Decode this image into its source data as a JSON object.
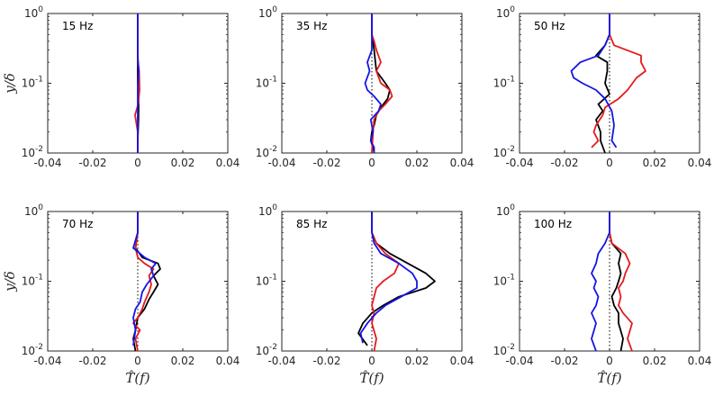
{
  "chart_data": {
    "type": "line",
    "xlabel": "T̂(f)",
    "ylabel": "y/δ",
    "xlim": [
      -0.04,
      0.04
    ],
    "ylim": [
      0.01,
      1
    ],
    "yscale": "log",
    "x_ticks": [
      "-0.04",
      "-0.02",
      "0",
      "0.02",
      "0.04"
    ],
    "y_tick_values": [
      0.01,
      0.1,
      1
    ],
    "y_tick_exponents": [
      "-2",
      "-1",
      "0"
    ],
    "y_tick_base": "10",
    "reference_line": {
      "x": 0,
      "style": "dotted",
      "color": "#000000"
    },
    "series_colors": {
      "black": "#000000",
      "red": "#e41a1c",
      "blue": "#1414e6"
    },
    "panels": [
      {
        "label": "15 Hz",
        "series": [
          {
            "color": "black",
            "x": [
              0,
              0,
              0,
              0,
              0,
              0.0004,
              0.0003,
              0,
              0
            ],
            "y": [
              1,
              0.5,
              0.3,
              0.2,
              0.1,
              0.05,
              0.03,
              0.015,
              0.01
            ]
          },
          {
            "color": "red",
            "x": [
              0,
              0,
              0,
              0.0006,
              0.0008,
              0.0002,
              -0.0012,
              0,
              0
            ],
            "y": [
              1,
              0.5,
              0.22,
              0.15,
              0.08,
              0.05,
              0.035,
              0.02,
              0.01
            ]
          },
          {
            "color": "blue",
            "x": [
              0,
              0,
              0,
              0.0004,
              0,
              0,
              0,
              0
            ],
            "y": [
              1,
              0.5,
              0.25,
              0.15,
              0.08,
              0.04,
              0.02,
              0.01
            ]
          }
        ]
      },
      {
        "label": "35 Hz",
        "series": [
          {
            "color": "black",
            "x": [
              0,
              0,
              0.001,
              0.002,
              0.006,
              0.008,
              0.007,
              0.004,
              0.002,
              0.001,
              0,
              -0.0005,
              0.0005,
              0
            ],
            "y": [
              1,
              0.5,
              0.3,
              0.15,
              0.1,
              0.08,
              0.06,
              0.045,
              0.035,
              0.025,
              0.02,
              0.015,
              0.012,
              0.01
            ]
          },
          {
            "color": "red",
            "x": [
              0,
              0,
              0.001,
              0.002,
              0.004,
              0.002,
              0.004,
              0.008,
              0.009,
              0.006,
              0.003,
              0.001,
              0.0005,
              0
            ],
            "y": [
              1,
              0.5,
              0.4,
              0.3,
              0.2,
              0.15,
              0.1,
              0.08,
              0.065,
              0.05,
              0.04,
              0.03,
              0.02,
              0.01
            ]
          },
          {
            "color": "blue",
            "x": [
              0,
              0,
              0,
              -0.002,
              -0.001,
              -0.003,
              -0.002,
              0.001,
              0.004,
              0.003,
              -0.0005,
              0.0005,
              -0.0005,
              0.001,
              0.001
            ],
            "y": [
              1,
              0.5,
              0.3,
              0.2,
              0.15,
              0.1,
              0.08,
              0.065,
              0.05,
              0.04,
              0.03,
              0.02,
              0.015,
              0.012,
              0.01
            ]
          }
        ]
      },
      {
        "label": "50 Hz",
        "series": [
          {
            "color": "black",
            "x": [
              0,
              0,
              -0.002,
              -0.006,
              -0.001,
              -0.001,
              -0.002,
              0,
              -0.005,
              -0.003,
              -0.006,
              -0.004,
              -0.004,
              -0.002
            ],
            "y": [
              1,
              0.5,
              0.35,
              0.25,
              0.2,
              0.15,
              0.1,
              0.07,
              0.05,
              0.04,
              0.03,
              0.02,
              0.015,
              0.01
            ]
          },
          {
            "color": "red",
            "x": [
              0,
              0,
              0.002,
              0.014,
              0.014,
              0.016,
              0.012,
              0.008,
              0.004,
              -0.002,
              -0.003,
              -0.006,
              -0.007,
              -0.005,
              -0.008
            ],
            "y": [
              1,
              0.5,
              0.35,
              0.25,
              0.2,
              0.15,
              0.12,
              0.08,
              0.06,
              0.045,
              0.035,
              0.025,
              0.02,
              0.015,
              0.012
            ]
          },
          {
            "color": "blue",
            "x": [
              0,
              0,
              -0.002,
              -0.005,
              -0.013,
              -0.017,
              -0.016,
              -0.012,
              -0.006,
              -0.002,
              0.001,
              0.002,
              0.001,
              0.003
            ],
            "y": [
              1,
              0.5,
              0.35,
              0.25,
              0.2,
              0.15,
              0.12,
              0.1,
              0.08,
              0.06,
              0.04,
              0.025,
              0.015,
              0.012
            ]
          }
        ]
      },
      {
        "label": "70 Hz",
        "series": [
          {
            "color": "black",
            "x": [
              0,
              0,
              -0.001,
              0.002,
              0.009,
              0.01,
              0.007,
              0.009,
              0.007,
              0.005,
              0.003,
              0,
              -0.001,
              -0.002,
              -0.001
            ],
            "y": [
              1,
              0.5,
              0.3,
              0.22,
              0.18,
              0.15,
              0.12,
              0.09,
              0.07,
              0.055,
              0.04,
              0.03,
              0.02,
              0.015,
              0.01
            ]
          },
          {
            "color": "red",
            "x": [
              0,
              0,
              -0.001,
              0,
              0.003,
              0.007,
              0.005,
              0.006,
              0.005,
              0.003,
              0.002,
              0,
              -0.002,
              0.001,
              -0.001,
              0
            ],
            "y": [
              1,
              0.5,
              0.3,
              0.22,
              0.18,
              0.15,
              0.12,
              0.09,
              0.07,
              0.05,
              0.04,
              0.03,
              0.025,
              0.02,
              0.015,
              0.01
            ]
          },
          {
            "color": "blue",
            "x": [
              0,
              0,
              -0.002,
              0.003,
              0.008,
              0.006,
              0.007,
              0.004,
              0.002,
              0.001,
              -0.001,
              -0.002,
              -0.001,
              -0.002
            ],
            "y": [
              1,
              0.5,
              0.3,
              0.22,
              0.18,
              0.15,
              0.12,
              0.09,
              0.07,
              0.05,
              0.04,
              0.03,
              0.02,
              0.012
            ]
          }
        ]
      },
      {
        "label": "85 Hz",
        "series": [
          {
            "color": "black",
            "x": [
              0,
              0,
              0.002,
              0.008,
              0.016,
              0.024,
              0.028,
              0.024,
              0.012,
              0.005,
              0,
              -0.004,
              -0.006,
              -0.002
            ],
            "y": [
              1,
              0.5,
              0.35,
              0.25,
              0.18,
              0.13,
              0.1,
              0.08,
              0.06,
              0.045,
              0.035,
              0.025,
              0.018,
              0.012
            ]
          },
          {
            "color": "red",
            "x": [
              0,
              0,
              0.002,
              0.006,
              0.012,
              0.01,
              0.005,
              0.002,
              0.001,
              0,
              0.001,
              0,
              0.002,
              0.001
            ],
            "y": [
              1,
              0.5,
              0.35,
              0.25,
              0.18,
              0.13,
              0.1,
              0.08,
              0.06,
              0.045,
              0.035,
              0.025,
              0.015,
              0.01
            ]
          },
          {
            "color": "blue",
            "x": [
              0,
              0,
              0.001,
              0.004,
              0.012,
              0.018,
              0.02,
              0.02,
              0.013,
              0.006,
              0.002,
              -0.002,
              -0.005,
              -0.004
            ],
            "y": [
              1,
              0.5,
              0.35,
              0.25,
              0.18,
              0.13,
              0.1,
              0.08,
              0.06,
              0.045,
              0.035,
              0.025,
              0.018,
              0.013
            ]
          }
        ]
      },
      {
        "label": "100 Hz",
        "series": [
          {
            "color": "black",
            "x": [
              0,
              0,
              0.001,
              0.005,
              0.004,
              0.005,
              0.004,
              0.003,
              0.001,
              0.002,
              0.004,
              0.004,
              0.006,
              0.005
            ],
            "y": [
              1,
              0.5,
              0.35,
              0.25,
              0.18,
              0.13,
              0.1,
              0.08,
              0.06,
              0.045,
              0.035,
              0.025,
              0.015,
              0.01
            ]
          },
          {
            "color": "red",
            "x": [
              0,
              0,
              0.001,
              0.007,
              0.009,
              0.007,
              0.006,
              0.004,
              0.005,
              0.004,
              0.006,
              0.01,
              0.008,
              0.01
            ],
            "y": [
              1,
              0.5,
              0.35,
              0.25,
              0.18,
              0.13,
              0.1,
              0.08,
              0.06,
              0.045,
              0.035,
              0.025,
              0.015,
              0.01
            ]
          },
          {
            "color": "blue",
            "x": [
              0,
              0,
              -0.002,
              -0.005,
              -0.006,
              -0.008,
              -0.006,
              -0.007,
              -0.005,
              -0.006,
              -0.008,
              -0.006,
              -0.008,
              -0.006
            ],
            "y": [
              1,
              0.5,
              0.35,
              0.25,
              0.18,
              0.13,
              0.1,
              0.08,
              0.06,
              0.045,
              0.035,
              0.025,
              0.015,
              0.01
            ]
          }
        ]
      }
    ]
  }
}
